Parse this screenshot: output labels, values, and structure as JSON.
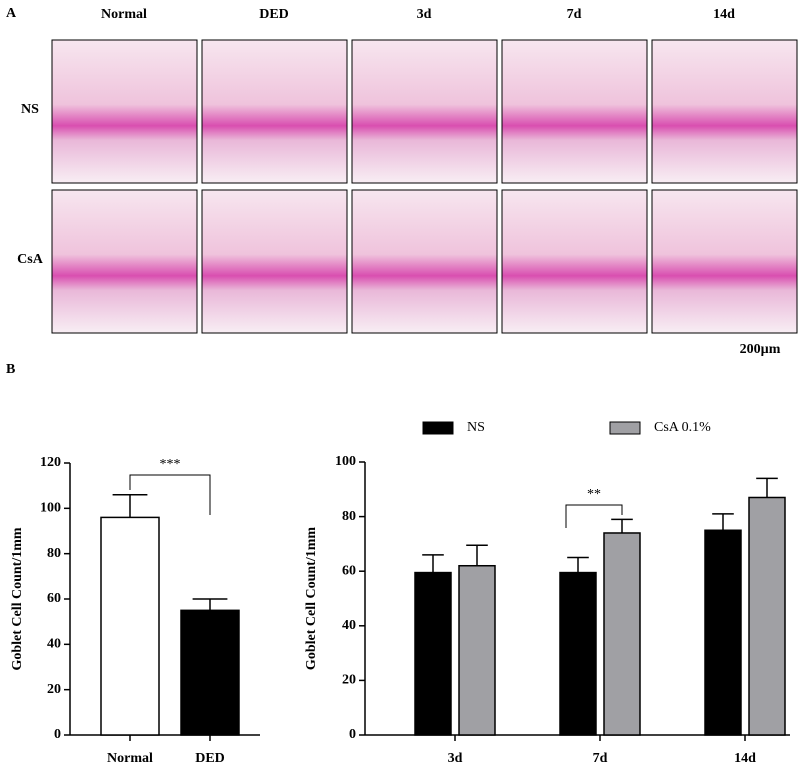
{
  "panel_a": {
    "label": "A",
    "columns": [
      "Normal",
      "DED",
      "3d",
      "7d",
      "14d"
    ],
    "rows": [
      "NS",
      "CsA"
    ],
    "scale_bar": "200µm"
  },
  "panel_b_label": "B",
  "chart_data": [
    {
      "type": "bar",
      "categories": [
        "Normal",
        "DED"
      ],
      "values": [
        96,
        55
      ],
      "errors": [
        10,
        5
      ],
      "colors": [
        "#ffffff",
        "#000000"
      ],
      "ylabel": "Goblet Cell Count/1mm",
      "ylim": [
        0,
        120
      ],
      "yticks": [
        0,
        20,
        40,
        60,
        80,
        100,
        120
      ],
      "annotations": [
        "***"
      ]
    },
    {
      "type": "grouped_bar",
      "categories": [
        "3d",
        "7d",
        "14d"
      ],
      "series": [
        {
          "name": "NS",
          "color": "#000000",
          "values": [
            59.5,
            59.5,
            75
          ],
          "errors": [
            6.5,
            5.5,
            6
          ]
        },
        {
          "name": "CsA 0.1%",
          "color": "#a0a0a4",
          "values": [
            62,
            74,
            87
          ],
          "errors": [
            7.5,
            5,
            7
          ]
        }
      ],
      "ylabel": "Goblet Cell Count/1mm",
      "ylim": [
        0,
        100
      ],
      "yticks": [
        0,
        20,
        40,
        60,
        80,
        100
      ],
      "annotations": [
        "**"
      ]
    }
  ]
}
